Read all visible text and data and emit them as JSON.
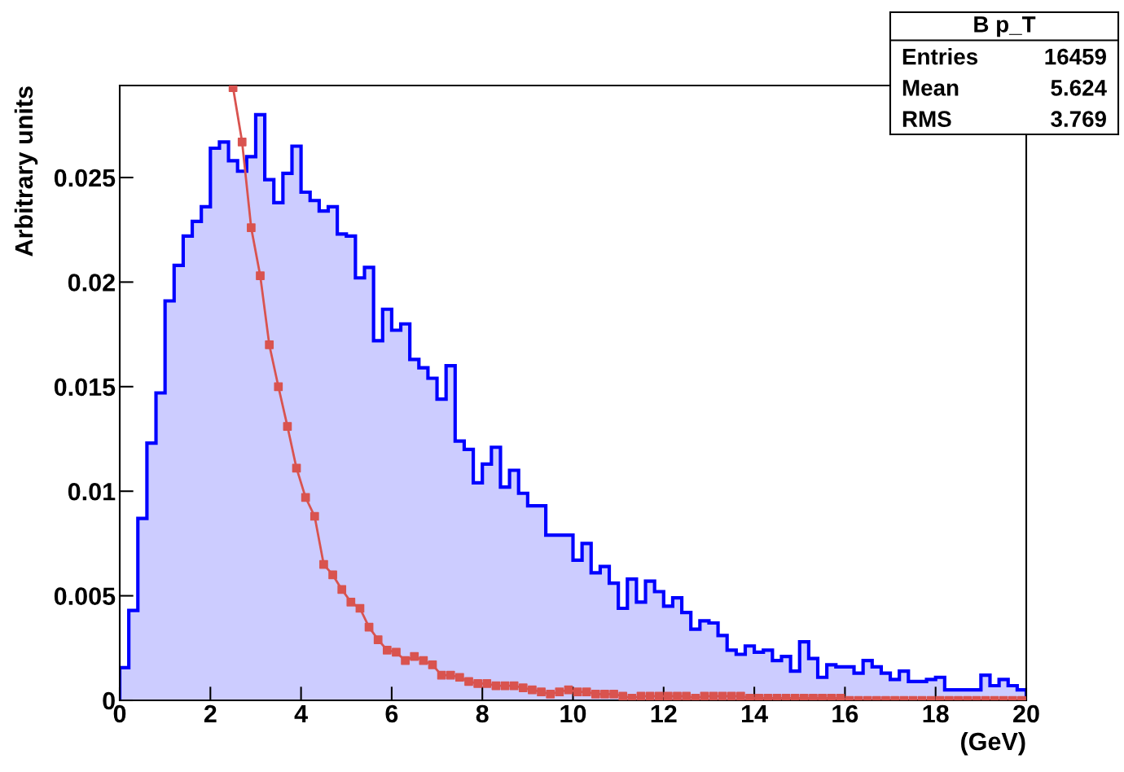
{
  "chart_data": {
    "type": "histogram",
    "title": "B p_T",
    "xlabel": "(GeV)",
    "ylabel": "Arbitrary units",
    "bins": [
      0,
      0.2,
      0.4,
      0.6,
      0.8,
      1,
      1.2,
      1.4,
      1.6,
      1.8,
      2,
      2.2,
      2.4,
      2.6,
      2.8,
      3,
      3.2,
      3.4,
      3.6,
      3.8,
      4,
      4.2,
      4.4,
      4.6,
      4.8,
      5,
      5.2,
      5.4,
      5.6,
      5.8,
      6,
      6.2,
      6.4,
      6.6,
      6.8,
      7,
      7.2,
      7.4,
      7.6,
      7.8,
      8,
      8.2,
      8.4,
      8.6,
      8.8,
      9,
      9.2,
      9.4,
      9.6,
      9.8,
      10,
      10.2,
      10.4,
      10.6,
      10.8,
      11,
      11.2,
      11.4,
      11.6,
      11.8,
      12,
      12.2,
      12.4,
      12.6,
      12.8,
      13,
      13.2,
      13.4,
      13.6,
      13.8,
      14,
      14.2,
      14.4,
      14.6,
      14.8,
      15,
      15.2,
      15.4,
      15.6,
      15.8,
      16,
      16.2,
      16.4,
      16.6,
      16.8,
      17,
      17.2,
      17.4,
      17.6,
      17.8,
      18,
      18.2,
      18.4,
      18.6,
      18.8,
      19,
      19.2,
      19.4,
      19.6,
      19.8,
      20
    ],
    "series": [
      {
        "color": "#0000ff",
        "values": [
          0.00156,
          0.0043,
          0.0087,
          0.0123,
          0.0147,
          0.0191,
          0.0208,
          0.0222,
          0.0229,
          0.0236,
          0.0264,
          0.0267,
          0.0258,
          0.0253,
          0.026,
          0.028,
          0.0249,
          0.0238,
          0.0252,
          0.0265,
          0.0243,
          0.0239,
          0.0234,
          0.0236,
          0.0223,
          0.0222,
          0.0202,
          0.0207,
          0.0172,
          0.0187,
          0.0177,
          0.018,
          0.0163,
          0.0159,
          0.0154,
          0.0144,
          0.016,
          0.0124,
          0.012,
          0.0104,
          0.0113,
          0.0121,
          0.0102,
          0.011,
          0.0099,
          0.0093,
          0.0093,
          0.0079,
          0.0079,
          0.0079,
          0.0067,
          0.0075,
          0.0061,
          0.0064,
          0.0056,
          0.0044,
          0.0058,
          0.0047,
          0.0057,
          0.0052,
          0.0045,
          0.0049,
          0.0042,
          0.0034,
          0.0038,
          0.0037,
          0.0031,
          0.0024,
          0.0022,
          0.0026,
          0.0023,
          0.0024,
          0.0019,
          0.0021,
          0.0014,
          0.0028,
          0.002,
          0.0011,
          0.0017,
          0.0016,
          0.0016,
          0.0013,
          0.0019,
          0.0016,
          0.0013,
          0.001,
          0.0014,
          0.0009,
          0.0009,
          0.001,
          0.0011,
          0.0005,
          0.0005,
          0.0005,
          0.0005,
          0.0012,
          0.0007,
          0.001,
          0.0007,
          0.0005
        ]
      },
      {
        "type": "line",
        "color": "#d9534f",
        "marker": "square",
        "x": [
          2.5,
          2.7,
          2.9,
          3.1,
          3.3,
          3.5,
          3.7,
          3.9,
          4.1,
          4.3,
          4.5,
          4.7,
          4.9,
          5.1,
          5.3,
          5.5,
          5.7,
          5.9,
          6.1,
          6.3,
          6.5,
          6.7,
          6.9,
          7.1,
          7.3,
          7.5,
          7.7,
          7.9,
          8.1,
          8.3,
          8.5,
          8.7,
          8.9,
          9.1,
          9.3,
          9.5,
          9.7,
          9.9,
          10.1,
          10.3,
          10.5,
          10.7,
          10.9,
          11.1,
          11.3,
          11.5,
          11.7,
          11.9,
          12.1,
          12.3,
          12.5,
          12.7,
          12.9,
          13.1,
          13.3,
          13.5,
          13.7,
          13.9,
          14.1,
          14.3,
          14.5,
          14.7,
          14.9,
          15.1,
          15.3,
          15.5,
          15.7,
          15.9,
          16.1,
          16.3,
          16.5,
          16.7,
          16.9,
          17.1,
          17.3,
          17.5,
          17.7,
          17.9,
          18.1,
          18.3,
          18.5,
          18.7,
          18.9,
          19.1,
          19.3,
          19.5,
          19.7,
          19.9
        ],
        "values": [
          0.0293,
          0.0267,
          0.0226,
          0.0203,
          0.017,
          0.015,
          0.0131,
          0.0111,
          0.0097,
          0.0088,
          0.0065,
          0.006,
          0.0053,
          0.0047,
          0.0044,
          0.0035,
          0.0029,
          0.0024,
          0.0023,
          0.0019,
          0.0021,
          0.0019,
          0.0017,
          0.0012,
          0.0012,
          0.0011,
          0.0009,
          0.0008,
          0.0008,
          0.0007,
          0.0007,
          0.0007,
          0.0006,
          0.0005,
          0.0004,
          0.0003,
          0.0004,
          0.0005,
          0.0004,
          0.0004,
          0.0003,
          0.0003,
          0.0003,
          0.0002,
          0.0001,
          0.0002,
          0.0002,
          0.0002,
          0.0002,
          0.0002,
          0.0002,
          0.0001,
          0.0002,
          0.0002,
          0.0002,
          0.0002,
          0.0002,
          0.0001,
          0.0001,
          0.0001,
          0.0001,
          0.0001,
          0.0001,
          0.0001,
          0.0001,
          0.0001,
          0.0001,
          0.0001,
          0,
          0,
          0,
          0,
          0,
          0,
          0,
          0,
          0,
          0,
          0,
          0,
          0,
          0,
          0,
          0,
          0,
          0,
          0,
          0
        ]
      }
    ],
    "xlim": [
      0,
      20
    ],
    "xticks": [
      0,
      2,
      4,
      6,
      8,
      10,
      12,
      14,
      16,
      18,
      20
    ],
    "ylim": [
      0,
      0.0294
    ],
    "yticks": [
      0,
      0.005,
      0.01,
      0.015,
      0.02,
      0.025
    ],
    "grid": false,
    "legend": false,
    "annotations": [
      "Entries",
      "16459",
      "Mean",
      "5.624",
      "RMS",
      "3.769"
    ]
  }
}
